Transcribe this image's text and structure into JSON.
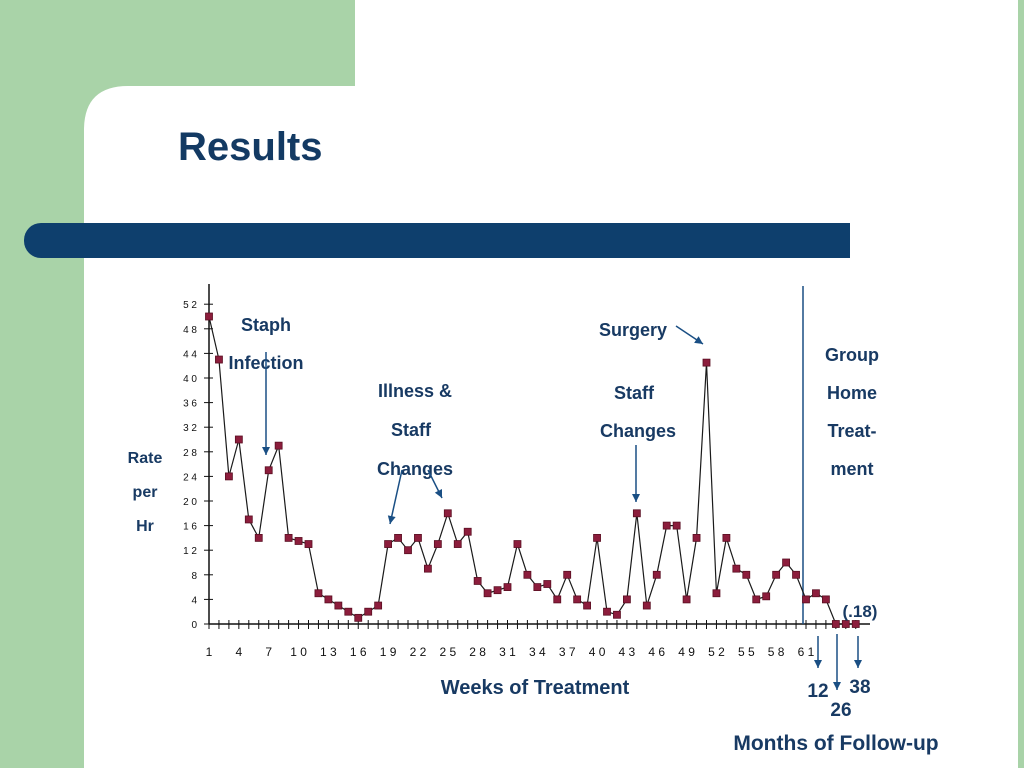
{
  "slide": {
    "title": "Results",
    "colors": {
      "title": "#133a63",
      "bar": "#0e3f6d",
      "bg_green": "#a9d3a8",
      "bg_white": "#ffffff"
    }
  },
  "chart_data": {
    "type": "line",
    "ylabel": [
      "Rate",
      "per",
      "Hr"
    ],
    "xlabel": "Weeks of Treatment",
    "followup_label": "Months of Follow-up",
    "ylim": [
      0,
      52
    ],
    "yticks": [
      "0",
      "4",
      "8",
      "12",
      "16",
      "20",
      "24",
      "28",
      "32",
      "36",
      "40",
      "44",
      "48",
      "52"
    ],
    "xtick_labels": [
      "1",
      "4",
      "7",
      "10",
      "13",
      "16",
      "19",
      "22",
      "25",
      "28",
      "31",
      "34",
      "37",
      "40",
      "43",
      "46",
      "49",
      "52",
      "55",
      "58",
      "61"
    ],
    "x": [
      1,
      2,
      3,
      4,
      5,
      6,
      7,
      8,
      9,
      10,
      11,
      12,
      13,
      14,
      15,
      16,
      17,
      18,
      19,
      20,
      21,
      22,
      23,
      24,
      25,
      26,
      27,
      28,
      29,
      30,
      31,
      32,
      33,
      34,
      35,
      36,
      37,
      38,
      39,
      40,
      41,
      42,
      43,
      44,
      45,
      46,
      47,
      48,
      49,
      50,
      51,
      52,
      53,
      54,
      55,
      56,
      57,
      58,
      59,
      60,
      61
    ],
    "values": [
      50,
      43,
      24,
      30,
      17,
      14,
      25,
      29,
      14,
      13.5,
      13,
      5,
      4,
      3,
      2,
      1,
      2,
      3,
      13,
      14,
      12,
      14,
      9,
      13,
      18,
      13,
      15,
      7,
      5,
      5.5,
      6,
      13,
      8,
      6,
      6.5,
      4,
      8,
      4,
      3,
      14,
      2,
      1.5,
      4,
      18,
      3,
      8,
      16,
      16,
      4,
      14,
      42.5,
      5,
      14,
      9,
      8,
      4,
      4.5,
      8,
      10,
      8,
      4
    ],
    "followup_x": [
      62,
      63,
      64,
      65,
      66
    ],
    "followup_values": [
      5,
      4,
      0,
      0,
      0
    ],
    "followup_months": [
      "12",
      "26",
      "38"
    ],
    "followup_note": "(.18)",
    "annotations": {
      "staph": [
        "Staph",
        "Infection"
      ],
      "illness": [
        "Illness &",
        "Staff",
        "Changes"
      ],
      "surgery": "Surgery",
      "staff": [
        "Staff",
        "Changes"
      ],
      "group": [
        "Group",
        "Home",
        "Treat-",
        "ment"
      ]
    },
    "colors": {
      "line": "#1a1a1a",
      "marker": "#8c1d3c",
      "text": "#183a63",
      "arrow": "#1a4f84",
      "axis": "#111111"
    }
  }
}
